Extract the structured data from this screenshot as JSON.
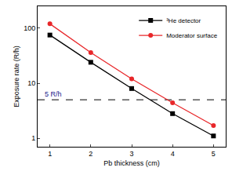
{
  "chart_data": {
    "type": "line",
    "x_label": "Pb thickness (cm)",
    "y_label": "Exposure rate (R/h)",
    "x": [
      1,
      2,
      3,
      4,
      5
    ],
    "series": [
      {
        "name": "³He detector",
        "color": "#000000",
        "marker": "square",
        "values": [
          75,
          24,
          8,
          2.8,
          1.1
        ]
      },
      {
        "name": "Moderator surface",
        "color": "#e8272a",
        "marker": "circle",
        "values": [
          120,
          36,
          12,
          4.4,
          1.7
        ]
      }
    ],
    "reference": {
      "y": 5,
      "text": "5 R/h",
      "line_style": "dash"
    },
    "xlim": [
      0.7,
      5.3
    ],
    "ylim": [
      0.7,
      250
    ],
    "xticks": [
      1,
      2,
      3,
      4,
      5
    ],
    "yticks": [
      1,
      10,
      100
    ],
    "log": "y",
    "grid": false,
    "legend": "upper right"
  }
}
